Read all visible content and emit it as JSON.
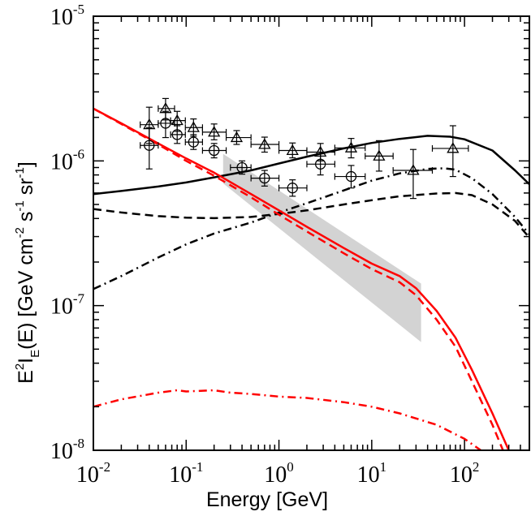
{
  "chart_data": {
    "type": "line",
    "title": "",
    "xlabel": "Energy [GeV]",
    "ylabel": {
      "main": "E",
      "sup2": "2",
      "i": "I",
      "sub": "E",
      "rest": "(E) [GeV cm",
      "exp1": "-2",
      "s": " s",
      "exp2": "-1",
      "sr": " sr",
      "exp3": "-1",
      "close": "]"
    },
    "x_scale": "log",
    "y_scale": "log",
    "xlim": [
      0.01,
      500
    ],
    "ylim": [
      1e-08,
      1e-05
    ],
    "x_ticks": [
      {
        "value": 0.01,
        "base": "10",
        "exp": "-2"
      },
      {
        "value": 0.1,
        "base": "10",
        "exp": "-1"
      },
      {
        "value": 1,
        "base": "10",
        "exp": "0"
      },
      {
        "value": 10,
        "base": "10",
        "exp": "1"
      },
      {
        "value": 100,
        "base": "10",
        "exp": "2"
      }
    ],
    "y_ticks": [
      {
        "value": 1e-08,
        "base": "10",
        "exp": "-8"
      },
      {
        "value": 1e-07,
        "base": "10",
        "exp": "-7"
      },
      {
        "value": 1e-06,
        "base": "10",
        "exp": "-6"
      },
      {
        "value": 1e-05,
        "base": "10",
        "exp": "-5"
      }
    ],
    "legend": "none",
    "band": {
      "name": "uncertainty band",
      "color": "#d3d3d3",
      "upper": [
        [
          0.25,
          1.12e-06
        ],
        [
          34,
          1.42e-07
        ]
      ],
      "lower": [
        [
          0.25,
          7e-07
        ],
        [
          34,
          5.6e-08
        ]
      ]
    },
    "series": [
      {
        "name": "black solid",
        "color": "#000000",
        "dash": "solid",
        "points": [
          [
            0.01,
            5.9e-07
          ],
          [
            0.02,
            6.2e-07
          ],
          [
            0.05,
            6.65e-07
          ],
          [
            0.1,
            7.1e-07
          ],
          [
            0.2,
            7.7e-07
          ],
          [
            0.5,
            8.6e-07
          ],
          [
            1,
            9.6e-07
          ],
          [
            2,
            1.07e-06
          ],
          [
            5,
            1.22e-06
          ],
          [
            10,
            1.33e-06
          ],
          [
            20,
            1.42e-06
          ],
          [
            40,
            1.49e-06
          ],
          [
            70,
            1.47e-06
          ],
          [
            100,
            1.41e-06
          ],
          [
            200,
            1.18e-06
          ],
          [
            350,
            8.6e-07
          ],
          [
            500,
            6.9e-07
          ]
        ]
      },
      {
        "name": "black dashed",
        "color": "#000000",
        "dash": "dashed",
        "points": [
          [
            0.01,
            4.65e-07
          ],
          [
            0.02,
            4.4e-07
          ],
          [
            0.05,
            4.15e-07
          ],
          [
            0.1,
            4.05e-07
          ],
          [
            0.2,
            4.02e-07
          ],
          [
            0.5,
            4.1e-07
          ],
          [
            1,
            4.3e-07
          ],
          [
            2,
            4.55e-07
          ],
          [
            5,
            5e-07
          ],
          [
            10,
            5.35e-07
          ],
          [
            20,
            5.7e-07
          ],
          [
            50,
            5.95e-07
          ],
          [
            80,
            6e-07
          ],
          [
            120,
            5.8e-07
          ],
          [
            200,
            5e-07
          ],
          [
            350,
            3.85e-07
          ],
          [
            500,
            2.95e-07
          ]
        ]
      },
      {
        "name": "black dash-dot",
        "color": "#000000",
        "dash": "dashdot",
        "points": [
          [
            0.01,
            1.3e-07
          ],
          [
            0.02,
            1.6e-07
          ],
          [
            0.05,
            2.15e-07
          ],
          [
            0.1,
            2.65e-07
          ],
          [
            0.2,
            3.15e-07
          ],
          [
            0.5,
            3.75e-07
          ],
          [
            1,
            4.4e-07
          ],
          [
            2,
            5.1e-07
          ],
          [
            5,
            6.25e-07
          ],
          [
            10,
            7.3e-07
          ],
          [
            20,
            8.2e-07
          ],
          [
            40,
            8.8e-07
          ],
          [
            60,
            8.9e-07
          ],
          [
            80,
            8.7e-07
          ],
          [
            120,
            7.6e-07
          ],
          [
            200,
            5.9e-07
          ],
          [
            350,
            4.1e-07
          ],
          [
            500,
            3.1e-07
          ]
        ]
      },
      {
        "name": "red solid",
        "color": "#ff0000",
        "dash": "solid",
        "points": [
          [
            0.01,
            2.3e-06
          ],
          [
            0.02,
            1.82e-06
          ],
          [
            0.05,
            1.32e-06
          ],
          [
            0.1,
            1.04e-06
          ],
          [
            0.2,
            8.3e-07
          ],
          [
            0.5,
            5.9e-07
          ],
          [
            1,
            4.55e-07
          ],
          [
            2,
            3.5e-07
          ],
          [
            5,
            2.5e-07
          ],
          [
            10,
            1.95e-07
          ],
          [
            20,
            1.6e-07
          ],
          [
            30,
            1.32e-07
          ],
          [
            50,
            9.2e-08
          ],
          [
            80,
            6e-08
          ],
          [
            120,
            3.6e-08
          ],
          [
            200,
            1.8e-08
          ],
          [
            300,
            1e-08
          ]
        ]
      },
      {
        "name": "red dashed",
        "color": "#ff0000",
        "dash": "dashed",
        "points": [
          [
            0.01,
            2.3e-06
          ],
          [
            0.02,
            1.8e-06
          ],
          [
            0.05,
            1.3e-06
          ],
          [
            0.1,
            1e-06
          ],
          [
            0.2,
            7.9e-07
          ],
          [
            0.5,
            5.6e-07
          ],
          [
            1,
            4.25e-07
          ],
          [
            2,
            3.25e-07
          ],
          [
            5,
            2.3e-07
          ],
          [
            10,
            1.79e-07
          ],
          [
            20,
            1.45e-07
          ],
          [
            30,
            1.18e-07
          ],
          [
            50,
            8e-08
          ],
          [
            80,
            5.2e-08
          ],
          [
            120,
            3e-08
          ],
          [
            200,
            1.5e-08
          ],
          [
            260,
            1e-08
          ]
        ]
      },
      {
        "name": "red dash-dot",
        "color": "#ff0000",
        "dash": "dashdot",
        "points": [
          [
            0.01,
            2e-08
          ],
          [
            0.02,
            2.25e-08
          ],
          [
            0.05,
            2.5e-08
          ],
          [
            0.08,
            2.6e-08
          ],
          [
            0.1,
            2.55e-08
          ],
          [
            0.2,
            2.6e-08
          ],
          [
            0.3,
            2.5e-08
          ],
          [
            0.5,
            2.45e-08
          ],
          [
            1,
            2.35e-08
          ],
          [
            2,
            2.3e-08
          ],
          [
            5,
            2.15e-08
          ],
          [
            10,
            2e-08
          ],
          [
            20,
            1.8e-08
          ],
          [
            50,
            1.5e-08
          ],
          [
            100,
            1.2e-08
          ],
          [
            150,
            1e-08
          ]
        ]
      }
    ],
    "data_triangles": {
      "name": "triangle data",
      "points": [
        {
          "x": 0.04,
          "y": 1.78e-06,
          "xlo": 0.032,
          "xhi": 0.05,
          "ylo": 1.32e-06,
          "yhi": 2.35e-06
        },
        {
          "x": 0.06,
          "y": 2.3e-06,
          "xlo": 0.05,
          "xhi": 0.075,
          "ylo": 1.92e-06,
          "yhi": 2.7e-06
        },
        {
          "x": 0.08,
          "y": 1.9e-06,
          "xlo": 0.068,
          "xhi": 0.098,
          "ylo": 1.6e-06,
          "yhi": 2.2e-06
        },
        {
          "x": 0.12,
          "y": 1.7e-06,
          "xlo": 0.098,
          "xhi": 0.15,
          "ylo": 1.48e-06,
          "yhi": 1.95e-06
        },
        {
          "x": 0.2,
          "y": 1.58e-06,
          "xlo": 0.15,
          "xhi": 0.27,
          "ylo": 1.4e-06,
          "yhi": 1.8e-06
        },
        {
          "x": 0.35,
          "y": 1.45e-06,
          "xlo": 0.27,
          "xhi": 0.5,
          "ylo": 1.3e-06,
          "yhi": 1.62e-06
        },
        {
          "x": 0.7,
          "y": 1.3e-06,
          "xlo": 0.5,
          "xhi": 1.0,
          "ylo": 1.15e-06,
          "yhi": 1.46e-06
        },
        {
          "x": 1.4,
          "y": 1.18e-06,
          "xlo": 1.0,
          "xhi": 2.0,
          "ylo": 1.05e-06,
          "yhi": 1.33e-06
        },
        {
          "x": 2.8,
          "y": 1.15e-06,
          "xlo": 2.0,
          "xhi": 4.0,
          "ylo": 1e-06,
          "yhi": 1.32e-06
        },
        {
          "x": 6,
          "y": 1.23e-06,
          "xlo": 4.0,
          "xhi": 8.5,
          "ylo": 1.05e-06,
          "yhi": 1.43e-06
        },
        {
          "x": 12,
          "y": 1.08e-06,
          "xlo": 8.5,
          "xhi": 17,
          "ylo": 8.5e-07,
          "yhi": 1.38e-06
        },
        {
          "x": 28,
          "y": 8.6e-07,
          "xlo": 17,
          "xhi": 45,
          "ylo": 5.5e-07,
          "yhi": 1.2e-06
        },
        {
          "x": 75,
          "y": 1.22e-06,
          "xlo": 45,
          "xhi": 110,
          "ylo": 7.8e-07,
          "yhi": 1.75e-06
        }
      ]
    },
    "data_circles": {
      "name": "circle data",
      "points": [
        {
          "x": 0.04,
          "y": 1.28e-06,
          "xlo": 0.032,
          "xhi": 0.05,
          "ylo": 8.8e-07,
          "yhi": 1.7e-06
        },
        {
          "x": 0.06,
          "y": 1.82e-06,
          "xlo": 0.05,
          "xhi": 0.075,
          "ylo": 1.45e-06,
          "yhi": 2.2e-06
        },
        {
          "x": 0.08,
          "y": 1.52e-06,
          "xlo": 0.068,
          "xhi": 0.098,
          "ylo": 1.32e-06,
          "yhi": 1.75e-06
        },
        {
          "x": 0.12,
          "y": 1.35e-06,
          "xlo": 0.098,
          "xhi": 0.15,
          "ylo": 1.2e-06,
          "yhi": 1.52e-06
        },
        {
          "x": 0.2,
          "y": 1.18e-06,
          "xlo": 0.15,
          "xhi": 0.27,
          "ylo": 1.05e-06,
          "yhi": 1.32e-06
        },
        {
          "x": 0.4,
          "y": 9e-07,
          "xlo": 0.3,
          "xhi": 0.5,
          "ylo": 8.1e-07,
          "yhi": 1e-06
        },
        {
          "x": 0.7,
          "y": 7.6e-07,
          "xlo": 0.5,
          "xhi": 1.0,
          "ylo": 6.7e-07,
          "yhi": 8.6e-07
        },
        {
          "x": 1.4,
          "y": 6.5e-07,
          "xlo": 1.0,
          "xhi": 2.0,
          "ylo": 5.7e-07,
          "yhi": 7.4e-07
        },
        {
          "x": 2.8,
          "y": 9.5e-07,
          "xlo": 2.0,
          "xhi": 4.0,
          "ylo": 8e-07,
          "yhi": 1.12e-06
        },
        {
          "x": 6,
          "y": 7.8e-07,
          "xlo": 4.0,
          "xhi": 8.5,
          "ylo": 6.5e-07,
          "yhi": 9.3e-07
        }
      ]
    }
  }
}
